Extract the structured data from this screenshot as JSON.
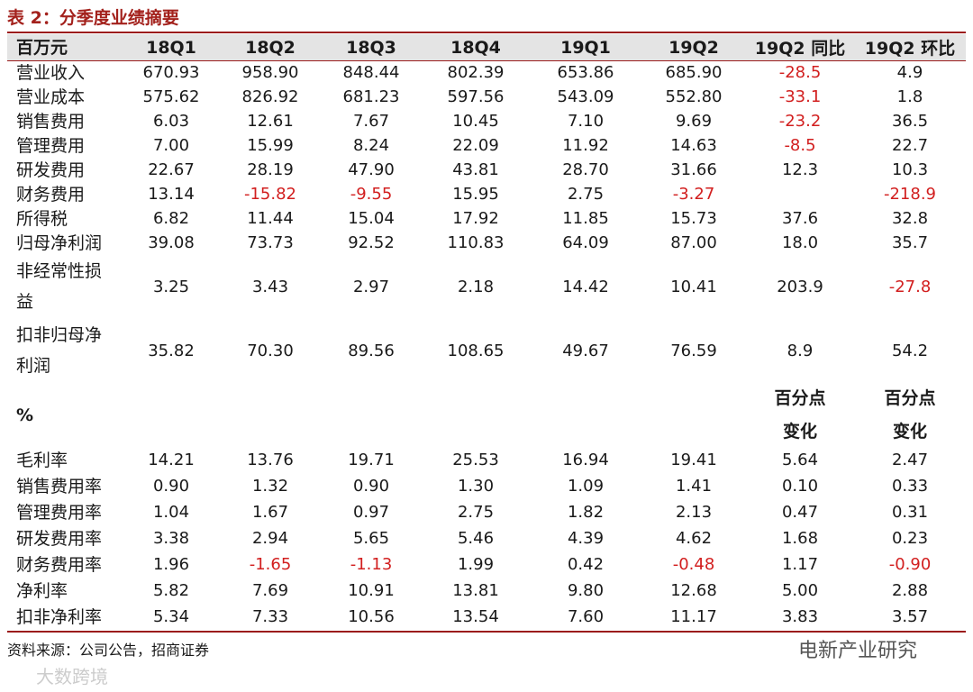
{
  "title": "表 2：分季度业绩摘要",
  "table": {
    "header": [
      "百万元",
      "18Q1",
      "18Q2",
      "18Q3",
      "18Q4",
      "19Q1",
      "19Q2",
      "19Q2 同比",
      "19Q2 环比"
    ],
    "rows": [
      {
        "label": "营业收入",
        "cells": [
          "670.93",
          "958.90",
          "848.44",
          "802.39",
          "653.86",
          "685.90",
          "-28.5",
          "4.9"
        ]
      },
      {
        "label": "营业成本",
        "cells": [
          "575.62",
          "826.92",
          "681.23",
          "597.56",
          "543.09",
          "552.80",
          "-33.1",
          "1.8"
        ]
      },
      {
        "label": "销售费用",
        "cells": [
          "6.03",
          "12.61",
          "7.67",
          "10.45",
          "7.10",
          "9.69",
          "-23.2",
          "36.5"
        ]
      },
      {
        "label": "管理费用",
        "cells": [
          "7.00",
          "15.99",
          "8.24",
          "22.09",
          "11.92",
          "14.63",
          "-8.5",
          "22.7"
        ]
      },
      {
        "label": "研发费用",
        "cells": [
          "22.67",
          "28.19",
          "47.90",
          "43.81",
          "28.70",
          "31.66",
          "12.3",
          "10.3"
        ]
      },
      {
        "label": "财务费用",
        "cells": [
          "13.14",
          "-15.82",
          "-9.55",
          "15.95",
          "2.75",
          "-3.27",
          null,
          "-218.9"
        ]
      },
      {
        "label": "所得税",
        "cells": [
          "6.82",
          "11.44",
          "15.04",
          "17.92",
          "11.85",
          "15.73",
          "37.6",
          "32.8"
        ]
      },
      {
        "label": "归母净利润",
        "cells": [
          "39.08",
          "73.73",
          "92.52",
          "110.83",
          "64.09",
          "87.00",
          "18.0",
          "35.7"
        ]
      },
      {
        "label": "非经常性损益",
        "cells": [
          "3.25",
          "3.43",
          "2.97",
          "2.18",
          "14.42",
          "10.41",
          "203.9",
          "-27.8"
        ]
      },
      {
        "label": "扣非归母净利润",
        "cells": [
          "35.82",
          "70.30",
          "89.56",
          "108.65",
          "49.67",
          "76.59",
          "8.9",
          "54.2"
        ]
      }
    ],
    "pct_header": {
      "label": "%",
      "change_yoy": "百分点变化",
      "change_qoq": "百分点变化"
    },
    "pct_rows": [
      {
        "label": "毛利率",
        "cells": [
          "14.21",
          "13.76",
          "19.71",
          "25.53",
          "16.94",
          "19.41",
          "5.64",
          "2.47"
        ]
      },
      {
        "label": "销售费用率",
        "cells": [
          "0.90",
          "1.32",
          "0.90",
          "1.30",
          "1.09",
          "1.41",
          "0.10",
          "0.33"
        ]
      },
      {
        "label": "管理费用率",
        "cells": [
          "1.04",
          "1.67",
          "0.97",
          "2.75",
          "1.82",
          "2.13",
          "0.47",
          "0.31"
        ]
      },
      {
        "label": "研发费用率",
        "cells": [
          "3.38",
          "2.94",
          "5.65",
          "5.46",
          "4.39",
          "4.62",
          "1.68",
          "0.23"
        ]
      },
      {
        "label": "财务费用率",
        "cells": [
          "1.96",
          "-1.65",
          "-1.13",
          "1.99",
          "0.42",
          "-0.48",
          "1.17",
          "-0.90"
        ]
      },
      {
        "label": "净利率",
        "cells": [
          "5.82",
          "7.69",
          "10.91",
          "13.81",
          "9.80",
          "12.68",
          "5.00",
          "2.88"
        ]
      },
      {
        "label": "扣非净利率",
        "cells": [
          "5.34",
          "7.33",
          "10.56",
          "13.54",
          "7.60",
          "11.17",
          "3.83",
          "3.57"
        ]
      }
    ]
  },
  "source": "资料来源：公司公告，招商证券",
  "watermark": "电新产业研究",
  "watermark2": "大数跨境"
}
